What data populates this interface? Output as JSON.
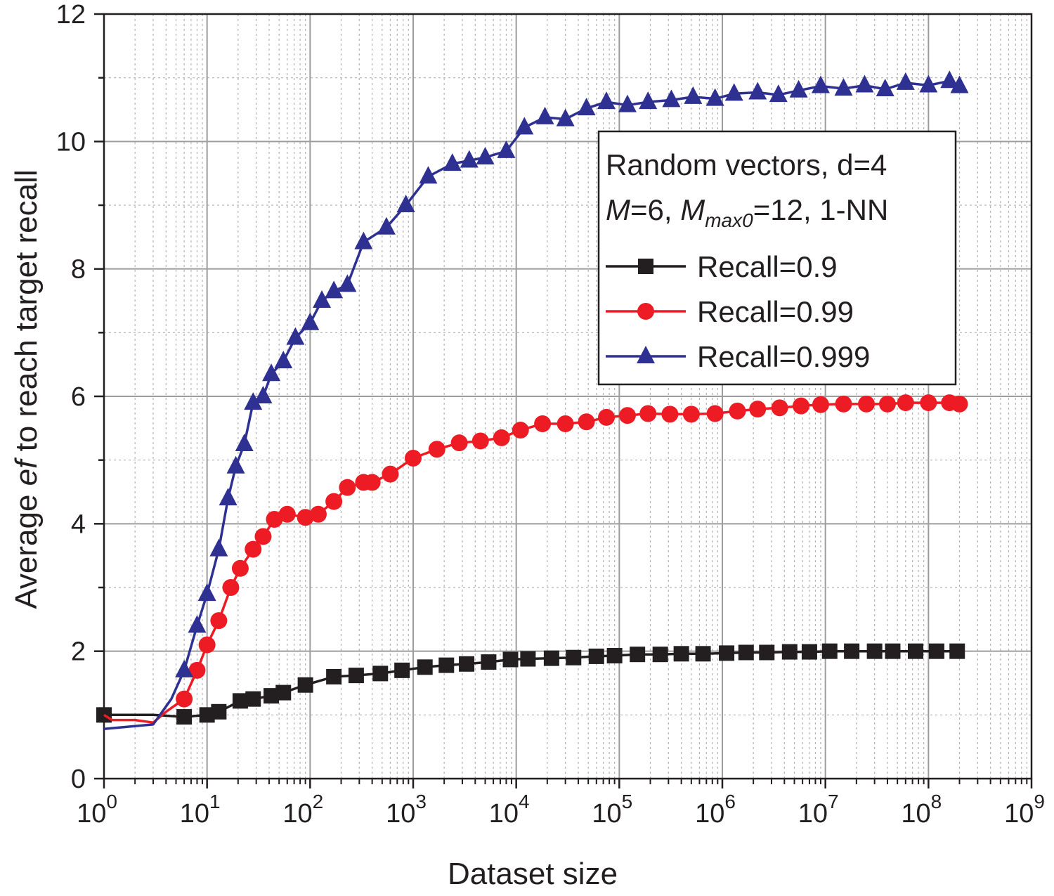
{
  "chart_data": {
    "type": "line",
    "title": "",
    "xlabel": "Dataset size",
    "ylabel_parts": [
      "Average ",
      "ef",
      " to reach target recall"
    ],
    "x_scale": "log",
    "xlim": [
      1,
      1000000000
    ],
    "ylim": [
      0,
      12
    ],
    "x_ticks": [
      {
        "value": 1,
        "base": "10",
        "exp": "0"
      },
      {
        "value": 10,
        "base": "10",
        "exp": "1"
      },
      {
        "value": 100,
        "base": "10",
        "exp": "2"
      },
      {
        "value": 1000,
        "base": "10",
        "exp": "3"
      },
      {
        "value": 10000,
        "base": "10",
        "exp": "4"
      },
      {
        "value": 100000,
        "base": "10",
        "exp": "5"
      },
      {
        "value": 1000000,
        "base": "10",
        "exp": "6"
      },
      {
        "value": 10000000,
        "base": "10",
        "exp": "7"
      },
      {
        "value": 100000000,
        "base": "10",
        "exp": "8"
      },
      {
        "value": 1000000000,
        "base": "10",
        "exp": "9"
      }
    ],
    "y_ticks": [
      0,
      2,
      4,
      6,
      8,
      10,
      12
    ],
    "grid": true,
    "legend": {
      "placement": "right",
      "header_line1": "Random vectors, d=4",
      "header_line2": {
        "m": "M",
        "m_val": "=6, ",
        "mmax": "M",
        "mmax_sub": "max0",
        "rest": "=12, 1-NN"
      }
    },
    "series": [
      {
        "name": "Recall=0.9",
        "color": "#231f20",
        "marker": "square",
        "points": [
          [
            1,
            1.0
          ],
          [
            3,
            1.0
          ],
          [
            6,
            0.97
          ],
          [
            10,
            1.0
          ],
          [
            13,
            1.05
          ],
          [
            21,
            1.22
          ],
          [
            28,
            1.25
          ],
          [
            42,
            1.3
          ],
          [
            55,
            1.35
          ],
          [
            90,
            1.47
          ],
          [
            170,
            1.6
          ],
          [
            280,
            1.62
          ],
          [
            480,
            1.65
          ],
          [
            780,
            1.7
          ],
          [
            1300,
            1.75
          ],
          [
            2100,
            1.78
          ],
          [
            3300,
            1.8
          ],
          [
            5400,
            1.83
          ],
          [
            8800,
            1.87
          ],
          [
            13000,
            1.88
          ],
          [
            22000,
            1.89
          ],
          [
            36000,
            1.9
          ],
          [
            60000,
            1.92
          ],
          [
            90000,
            1.93
          ],
          [
            150000,
            1.95
          ],
          [
            250000,
            1.95
          ],
          [
            400000,
            1.96
          ],
          [
            650000,
            1.96
          ],
          [
            1100000,
            1.97
          ],
          [
            1700000,
            1.98
          ],
          [
            2700000,
            1.98
          ],
          [
            4500000,
            1.99
          ],
          [
            7000000,
            1.99
          ],
          [
            11000000,
            2.0
          ],
          [
            18000000,
            2.0
          ],
          [
            30000000,
            2.0
          ],
          [
            45000000,
            2.0
          ],
          [
            75000000,
            2.0
          ],
          [
            120000000,
            2.0
          ],
          [
            190000000,
            2.0
          ]
        ]
      },
      {
        "name": "Recall=0.99",
        "color": "#ed1c24",
        "marker": "circle",
        "points": [
          [
            1,
            1.0
          ],
          [
            1.2,
            0.92
          ],
          [
            2,
            0.92
          ],
          [
            3,
            0.88
          ],
          [
            4,
            1.05
          ],
          [
            6,
            1.25
          ],
          [
            8,
            1.7
          ],
          [
            10,
            2.1
          ],
          [
            13,
            2.48
          ],
          [
            17,
            3.0
          ],
          [
            21,
            3.3
          ],
          [
            28,
            3.6
          ],
          [
            35,
            3.8
          ],
          [
            45,
            4.07
          ],
          [
            60,
            4.15
          ],
          [
            90,
            4.1
          ],
          [
            120,
            4.15
          ],
          [
            170,
            4.35
          ],
          [
            230,
            4.57
          ],
          [
            330,
            4.65
          ],
          [
            400,
            4.65
          ],
          [
            600,
            4.78
          ],
          [
            1000,
            5.03
          ],
          [
            1700,
            5.17
          ],
          [
            2800,
            5.27
          ],
          [
            4500,
            5.3
          ],
          [
            7200,
            5.35
          ],
          [
            11000,
            5.47
          ],
          [
            18000,
            5.57
          ],
          [
            30000,
            5.57
          ],
          [
            48000,
            5.6
          ],
          [
            75000,
            5.67
          ],
          [
            120000,
            5.7
          ],
          [
            190000,
            5.73
          ],
          [
            310000,
            5.72
          ],
          [
            500000,
            5.72
          ],
          [
            850000,
            5.73
          ],
          [
            1400000,
            5.77
          ],
          [
            2200000,
            5.8
          ],
          [
            3600000,
            5.82
          ],
          [
            5800000,
            5.85
          ],
          [
            9000000,
            5.87
          ],
          [
            15000000,
            5.88
          ],
          [
            25000000,
            5.88
          ],
          [
            40000000,
            5.88
          ],
          [
            60000000,
            5.9
          ],
          [
            100000000,
            5.9
          ],
          [
            160000000,
            5.9
          ],
          [
            200000000,
            5.88
          ]
        ]
      },
      {
        "name": "Recall=0.999",
        "color": "#2e3192",
        "marker": "triangle",
        "points": [
          [
            1,
            0.78
          ],
          [
            3,
            0.85
          ],
          [
            4.5,
            1.25
          ],
          [
            6,
            1.7
          ],
          [
            8,
            2.4
          ],
          [
            10,
            2.9
          ],
          [
            13,
            3.6
          ],
          [
            16,
            4.4
          ],
          [
            19,
            4.9
          ],
          [
            23,
            5.25
          ],
          [
            28,
            5.9
          ],
          [
            35,
            6.0
          ],
          [
            42,
            6.35
          ],
          [
            55,
            6.55
          ],
          [
            72,
            6.92
          ],
          [
            100,
            7.15
          ],
          [
            130,
            7.5
          ],
          [
            170,
            7.65
          ],
          [
            230,
            7.75
          ],
          [
            330,
            8.42
          ],
          [
            550,
            8.65
          ],
          [
            850,
            9.0
          ],
          [
            1400,
            9.45
          ],
          [
            2400,
            9.65
          ],
          [
            3500,
            9.7
          ],
          [
            5000,
            9.75
          ],
          [
            8000,
            9.85
          ],
          [
            12000,
            10.22
          ],
          [
            19000,
            10.38
          ],
          [
            30000,
            10.35
          ],
          [
            48000,
            10.52
          ],
          [
            75000,
            10.62
          ],
          [
            120000,
            10.57
          ],
          [
            190000,
            10.62
          ],
          [
            320000,
            10.65
          ],
          [
            520000,
            10.7
          ],
          [
            850000,
            10.67
          ],
          [
            1300000,
            10.75
          ],
          [
            2200000,
            10.77
          ],
          [
            3500000,
            10.73
          ],
          [
            5500000,
            10.8
          ],
          [
            9000000,
            10.87
          ],
          [
            15000000,
            10.83
          ],
          [
            24000000,
            10.88
          ],
          [
            38000000,
            10.82
          ],
          [
            60000000,
            10.92
          ],
          [
            100000000,
            10.88
          ],
          [
            160000000,
            10.95
          ],
          [
            200000000,
            10.87
          ]
        ]
      }
    ]
  }
}
